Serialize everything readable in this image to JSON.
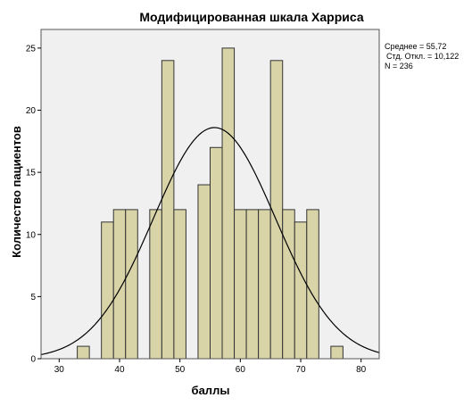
{
  "chart_data": {
    "type": "bar",
    "title": "Модифицированная шкала Харриса",
    "xlabel": "баллы",
    "ylabel": "Количество пациентов",
    "xlim": [
      27,
      83
    ],
    "ylim": [
      0,
      26.5
    ],
    "xticks": [
      30,
      40,
      50,
      60,
      70,
      80
    ],
    "yticks": [
      0,
      5,
      10,
      15,
      20,
      25
    ],
    "bin_width": 2,
    "bins": [
      {
        "x0": 33,
        "x1": 35,
        "value": 1
      },
      {
        "x0": 37,
        "x1": 39,
        "value": 11
      },
      {
        "x0": 39,
        "x1": 41,
        "value": 12
      },
      {
        "x0": 41,
        "x1": 43,
        "value": 12
      },
      {
        "x0": 45,
        "x1": 47,
        "value": 12
      },
      {
        "x0": 47,
        "x1": 49,
        "value": 24
      },
      {
        "x0": 49,
        "x1": 51,
        "value": 12
      },
      {
        "x0": 53,
        "x1": 55,
        "value": 14
      },
      {
        "x0": 55,
        "x1": 57,
        "value": 17
      },
      {
        "x0": 57,
        "x1": 59,
        "value": 25
      },
      {
        "x0": 59,
        "x1": 61,
        "value": 12
      },
      {
        "x0": 61,
        "x1": 63,
        "value": 12
      },
      {
        "x0": 63,
        "x1": 65,
        "value": 12
      },
      {
        "x0": 65,
        "x1": 67,
        "value": 24
      },
      {
        "x0": 67,
        "x1": 69,
        "value": 12
      },
      {
        "x0": 69,
        "x1": 71,
        "value": 11
      },
      {
        "x0": 71,
        "x1": 73,
        "value": 12
      },
      {
        "x0": 75,
        "x1": 77,
        "value": 1
      }
    ],
    "normal_curve": {
      "mean": 55.72,
      "std": 10.122,
      "n": 236
    },
    "stats_lines": [
      "Среднее = 55,72",
      "Стд. Откл. = 10,122",
      "N = 236"
    ],
    "grid": false,
    "colors": {
      "bar_fill": "#d8d4a8",
      "bar_stroke": "#333333",
      "plot_bg": "#f0f0f0",
      "curve": "#000000"
    }
  }
}
